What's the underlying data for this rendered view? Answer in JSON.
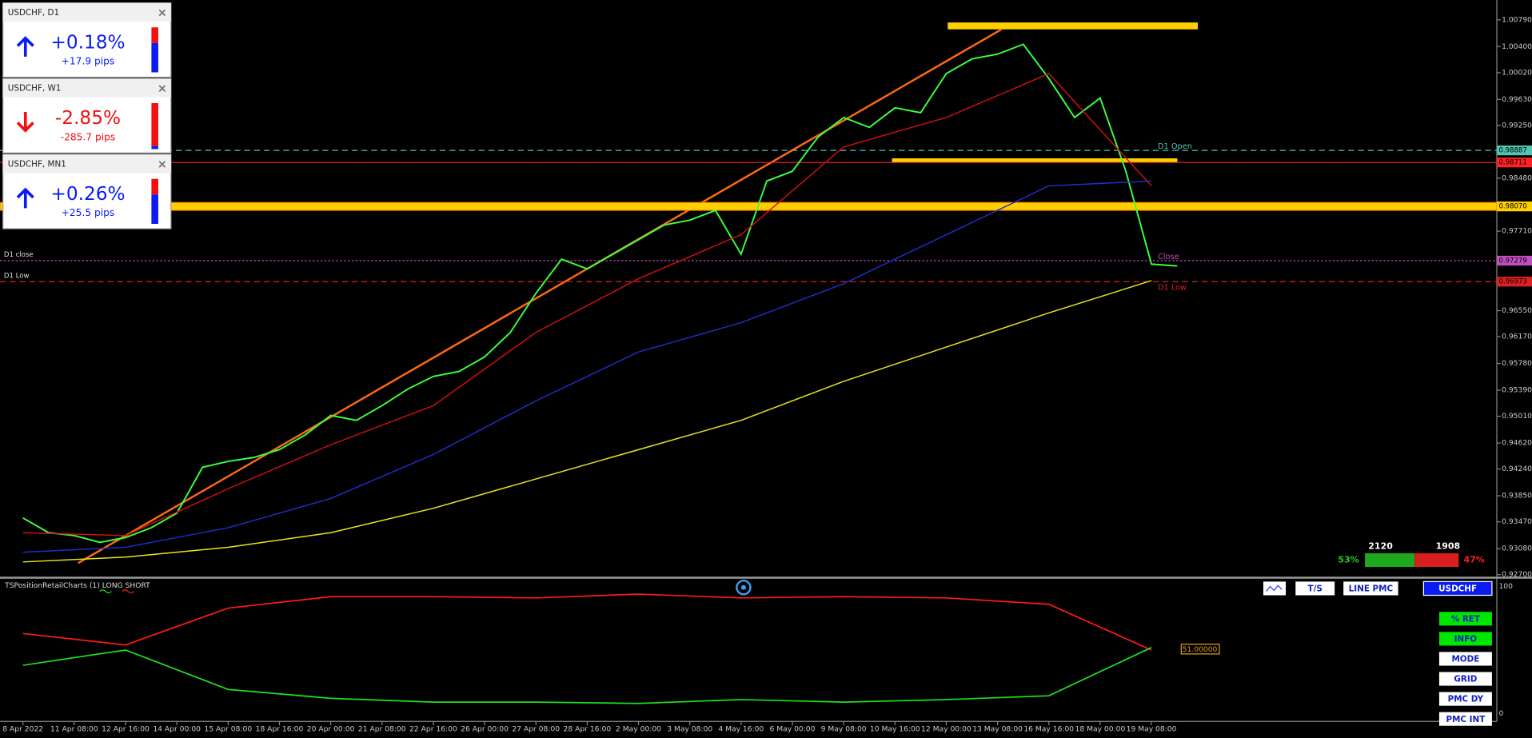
{
  "widgets": [
    {
      "title": "USDCHF, D1",
      "change": "+0.18%",
      "pips": "+17.9 pips",
      "direction": "up"
    },
    {
      "title": "USDCHF, W1",
      "change": "-2.85%",
      "pips": "-285.7 pips",
      "direction": "down"
    },
    {
      "title": "USDCHF, MN1",
      "change": "+0.26%",
      "pips": "+25.5 pips",
      "direction": "up"
    }
  ],
  "chart_data": {
    "type": "line",
    "categories": [
      "8 Apr 2022",
      null,
      "11 Apr 08:00",
      null,
      "12 Apr 16:00",
      null,
      "14 Apr 00:00",
      null,
      "15 Apr 08:00",
      null,
      "18 Apr 16:00",
      null,
      "20 Apr 00:00",
      null,
      "21 Apr 08:00",
      null,
      "22 Apr 16:00",
      null,
      "26 Apr 00:00",
      null,
      "27 Apr 08:00",
      null,
      "28 Apr 16:00",
      null,
      "2 May 00:00",
      null,
      "3 May 08:00",
      null,
      "4 May 16:00",
      null,
      "6 May 00:00",
      null,
      "9 May 08:00",
      null,
      "10 May 16:00",
      null,
      "12 May 00:00",
      null,
      "13 May 08:00",
      null,
      "16 May 16:00",
      null,
      "18 May 00:00",
      null,
      "19 May 08:00",
      null
    ],
    "ylim": [
      0.9267,
      1.0108
    ],
    "yticks": [
      {
        "value": 1.0079,
        "label": "1.00790"
      },
      {
        "value": 1.004,
        "label": "1.00400"
      },
      {
        "value": 1.0002,
        "label": "1.00020"
      },
      {
        "value": 0.9963,
        "label": "0.99630"
      },
      {
        "value": 0.9925,
        "label": "0.99250"
      },
      {
        "value": 0.9848,
        "label": "0.98480"
      },
      {
        "value": 0.9771,
        "label": "0.97710"
      },
      {
        "value": 0.9655,
        "label": "0.96550"
      },
      {
        "value": 0.9617,
        "label": "0.96170"
      },
      {
        "value": 0.9578,
        "label": "0.95780"
      },
      {
        "value": 0.9539,
        "label": "0.95390"
      },
      {
        "value": 0.9501,
        "label": "0.95010"
      },
      {
        "value": 0.9462,
        "label": "0.94620"
      },
      {
        "value": 0.9424,
        "label": "0.94240"
      },
      {
        "value": 0.9385,
        "label": "0.93850"
      },
      {
        "value": 0.9347,
        "label": "0.93470"
      },
      {
        "value": 0.9308,
        "label": "0.93080"
      },
      {
        "value": 0.927,
        "label": "0.92700"
      }
    ],
    "series": [
      {
        "color": "#3cff3c",
        "values": [
          0.93526,
          0.93312,
          0.9327,
          0.9317,
          0.93241,
          0.93384,
          0.93597,
          0.94267,
          0.94352,
          0.94409,
          0.94523,
          0.94737,
          0.95022,
          0.9495,
          0.95164,
          0.95406,
          0.95591,
          0.95663,
          0.95876,
          0.96232,
          0.96802,
          0.973,
          0.97158,
          0.97372,
          0.97585,
          0.97799,
          0.9787,
          0.98013,
          0.97372,
          0.9844,
          0.98582,
          0.99081,
          0.99366,
          0.99223,
          0.99508,
          0.99437,
          1.00007,
          1.0022,
          1.00291,
          1.00434,
          0.99935,
          0.99366,
          0.99651,
          0.98582,
          0.97229,
          0.97201
        ]
      },
      {
        "color": "#d01010",
        "x": [
          0,
          4,
          8,
          12,
          16,
          20,
          24,
          28,
          32,
          36,
          40,
          44
        ],
        "values": [
          0.93312,
          0.9327,
          0.93953,
          0.94594,
          0.95164,
          0.96232,
          0.97016,
          0.97657,
          0.98938,
          0.99366,
          1.00007,
          0.98369
        ]
      },
      {
        "color": "#1c2fc8",
        "x": [
          0,
          4,
          8,
          12,
          16,
          20,
          24,
          28,
          32,
          36,
          40,
          44
        ],
        "values": [
          0.93028,
          0.93099,
          0.93384,
          0.93811,
          0.94452,
          0.95235,
          0.95947,
          0.96375,
          0.96944,
          0.97657,
          0.98369,
          0.9844
        ]
      },
      {
        "color": "#e6e61e",
        "x": [
          0,
          4,
          8,
          12,
          16,
          20,
          24,
          28,
          32,
          36,
          40,
          44
        ],
        "values": [
          0.92885,
          0.92956,
          0.93099,
          0.93312,
          0.93668,
          0.94096,
          0.94523,
          0.9495,
          0.9552,
          0.96019,
          0.96517,
          0.96987
        ]
      }
    ],
    "levels": [
      {
        "value": 0.98887,
        "label": "0.98887",
        "color": "#4fc7b0",
        "style": "dashed",
        "tag": "D1 Open"
      },
      {
        "value": 0.98711,
        "label": "0.98711",
        "color": "#ff2020",
        "style": "solid"
      },
      {
        "value": 0.9807,
        "label": "0.98070",
        "color": "#ffd000",
        "style": "zone"
      },
      {
        "value": 0.97279,
        "label": "0.97279",
        "color": "#c050c0",
        "style": "dotted",
        "left_tag": "D1 close",
        "tag": "Close"
      },
      {
        "value": 0.96973,
        "label": "0.96973",
        "color": "#e02020",
        "style": "dashed",
        "left_tag": "D1 Low",
        "tag": "D1 Low"
      }
    ]
  },
  "indicator": {
    "title": "TSPositionRetailCharts (1) LONG SHORT",
    "ylim": [
      0,
      100
    ],
    "yticks": [
      0,
      100
    ],
    "value_tag": "51.00000",
    "series": [
      {
        "color": "#ff1a1a",
        "x": [
          0,
          4,
          8,
          12,
          16,
          20,
          24,
          28,
          32,
          36,
          40,
          44
        ],
        "values": [
          63,
          54,
          83,
          92,
          92,
          91,
          94,
          91,
          92,
          91,
          86,
          50
        ]
      },
      {
        "color": "#20e020",
        "x": [
          0,
          4,
          8,
          12,
          16,
          20,
          24,
          28,
          32,
          36,
          40,
          44
        ],
        "values": [
          38,
          50,
          19,
          12,
          9,
          9,
          8,
          11,
          9,
          11,
          14,
          52
        ]
      }
    ]
  },
  "sentiment": {
    "long": {
      "percent": 53,
      "label": "53%",
      "count": 2120
    },
    "short": {
      "percent": 47,
      "label": "47%",
      "count": 1908
    }
  },
  "buttons": {
    "top": [
      "T/S",
      "LINE PMC",
      "USDCHF"
    ],
    "side": [
      "% RET",
      "INFO",
      "MODE",
      "GRID",
      "PMC DY",
      "PMC INT"
    ]
  }
}
